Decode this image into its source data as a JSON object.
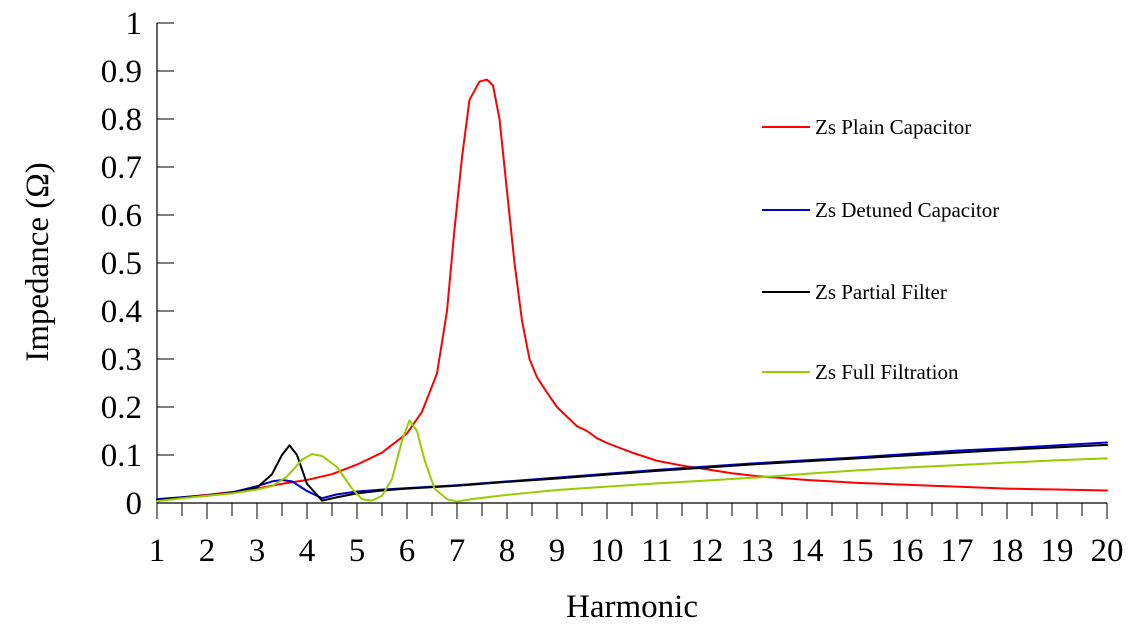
{
  "chart_data": {
    "type": "line",
    "title": "",
    "xlabel": "Harmonic",
    "ylabel": "Impedance (Ω)",
    "xlim": [
      1,
      20
    ],
    "ylim": [
      0,
      1
    ],
    "x_ticks": [
      1,
      2,
      3,
      4,
      5,
      6,
      7,
      8,
      9,
      10,
      11,
      12,
      13,
      14,
      15,
      16,
      17,
      18,
      19,
      20
    ],
    "x_tick_labels": [
      "1",
      "2",
      "3",
      "4",
      "5",
      "6",
      "7",
      "8",
      "9",
      "10",
      "11",
      "12",
      "13",
      "14",
      "15",
      "16",
      "17",
      "18",
      "19",
      "20"
    ],
    "y_ticks": [
      0,
      0.1,
      0.2,
      0.3,
      0.4,
      0.5,
      0.6,
      0.7,
      0.8,
      0.9,
      1
    ],
    "y_tick_labels": [
      "0",
      "0.1",
      "0.2",
      "0.3",
      "0.4",
      "0.5",
      "0.6",
      "0.7",
      "0.8",
      "0.9",
      "1"
    ],
    "grid": false,
    "legend_position": "right",
    "series": [
      {
        "name": "Zs Plain Capacitor",
        "color": "#ff0000",
        "points": [
          [
            1,
            0.005
          ],
          [
            1.5,
            0.012
          ],
          [
            2,
            0.017
          ],
          [
            2.5,
            0.023
          ],
          [
            3,
            0.03
          ],
          [
            3.5,
            0.04
          ],
          [
            4,
            0.048
          ],
          [
            4.5,
            0.06
          ],
          [
            5,
            0.08
          ],
          [
            5.5,
            0.105
          ],
          [
            6,
            0.145
          ],
          [
            6.3,
            0.19
          ],
          [
            6.6,
            0.27
          ],
          [
            6.8,
            0.4
          ],
          [
            6.95,
            0.57
          ],
          [
            7.1,
            0.72
          ],
          [
            7.25,
            0.84
          ],
          [
            7.45,
            0.878
          ],
          [
            7.6,
            0.882
          ],
          [
            7.72,
            0.87
          ],
          [
            7.85,
            0.8
          ],
          [
            8,
            0.65
          ],
          [
            8.15,
            0.5
          ],
          [
            8.3,
            0.38
          ],
          [
            8.45,
            0.3
          ],
          [
            8.6,
            0.262
          ],
          [
            8.8,
            0.23
          ],
          [
            9,
            0.2
          ],
          [
            9.2,
            0.18
          ],
          [
            9.4,
            0.16
          ],
          [
            9.6,
            0.15
          ],
          [
            9.8,
            0.135
          ],
          [
            10,
            0.125
          ],
          [
            10.5,
            0.105
          ],
          [
            11,
            0.088
          ],
          [
            11.5,
            0.078
          ],
          [
            12,
            0.07
          ],
          [
            12.5,
            0.062
          ],
          [
            13,
            0.056
          ],
          [
            13.5,
            0.052
          ],
          [
            14,
            0.048
          ],
          [
            14.5,
            0.045
          ],
          [
            15,
            0.042
          ],
          [
            15.5,
            0.04
          ],
          [
            16,
            0.038
          ],
          [
            16.5,
            0.036
          ],
          [
            17,
            0.034
          ],
          [
            17.5,
            0.032
          ],
          [
            18,
            0.03
          ],
          [
            18.5,
            0.029
          ],
          [
            19,
            0.028
          ],
          [
            19.5,
            0.027
          ],
          [
            20,
            0.026
          ]
        ]
      },
      {
        "name": "Zs Detuned Capacitor",
        "color": "#0000cc",
        "points": [
          [
            1,
            0.008
          ],
          [
            1.5,
            0.012
          ],
          [
            2,
            0.016
          ],
          [
            2.5,
            0.022
          ],
          [
            3,
            0.035
          ],
          [
            3.3,
            0.045
          ],
          [
            3.5,
            0.048
          ],
          [
            3.7,
            0.045
          ],
          [
            4,
            0.025
          ],
          [
            4.3,
            0.01
          ],
          [
            4.6,
            0.018
          ],
          [
            5,
            0.024
          ],
          [
            5.5,
            0.028
          ],
          [
            6,
            0.031
          ],
          [
            7,
            0.037
          ],
          [
            8,
            0.045
          ],
          [
            9,
            0.053
          ],
          [
            10,
            0.061
          ],
          [
            11,
            0.069
          ],
          [
            12,
            0.076
          ],
          [
            13,
            0.083
          ],
          [
            14,
            0.089
          ],
          [
            15,
            0.095
          ],
          [
            16,
            0.102
          ],
          [
            17,
            0.109
          ],
          [
            18,
            0.114
          ],
          [
            19,
            0.12
          ],
          [
            20,
            0.126
          ]
        ]
      },
      {
        "name": "Zs Partial Filter",
        "color": "#000000",
        "points": [
          [
            1,
            0.006
          ],
          [
            1.5,
            0.011
          ],
          [
            2,
            0.015
          ],
          [
            2.5,
            0.021
          ],
          [
            3,
            0.032
          ],
          [
            3.3,
            0.06
          ],
          [
            3.5,
            0.1
          ],
          [
            3.65,
            0.12
          ],
          [
            3.8,
            0.1
          ],
          [
            4,
            0.04
          ],
          [
            4.3,
            0.005
          ],
          [
            4.6,
            0.012
          ],
          [
            5,
            0.02
          ],
          [
            5.5,
            0.026
          ],
          [
            6,
            0.03
          ],
          [
            7,
            0.036
          ],
          [
            8,
            0.044
          ],
          [
            9,
            0.051
          ],
          [
            10,
            0.059
          ],
          [
            11,
            0.067
          ],
          [
            12,
            0.074
          ],
          [
            13,
            0.081
          ],
          [
            14,
            0.087
          ],
          [
            15,
            0.093
          ],
          [
            16,
            0.099
          ],
          [
            17,
            0.105
          ],
          [
            18,
            0.111
          ],
          [
            19,
            0.116
          ],
          [
            20,
            0.121
          ]
        ]
      },
      {
        "name": "Zs Full Filtration",
        "color": "#99cc00",
        "points": [
          [
            1,
            0.004
          ],
          [
            1.5,
            0.01
          ],
          [
            2,
            0.015
          ],
          [
            2.5,
            0.02
          ],
          [
            3,
            0.028
          ],
          [
            3.3,
            0.035
          ],
          [
            3.6,
            0.055
          ],
          [
            3.9,
            0.09
          ],
          [
            4.1,
            0.102
          ],
          [
            4.3,
            0.098
          ],
          [
            4.6,
            0.075
          ],
          [
            4.9,
            0.03
          ],
          [
            5.1,
            0.008
          ],
          [
            5.3,
            0.005
          ],
          [
            5.5,
            0.015
          ],
          [
            5.7,
            0.05
          ],
          [
            5.9,
            0.13
          ],
          [
            6.05,
            0.172
          ],
          [
            6.2,
            0.15
          ],
          [
            6.35,
            0.09
          ],
          [
            6.55,
            0.03
          ],
          [
            6.8,
            0.008
          ],
          [
            7,
            0.003
          ],
          [
            7.3,
            0.008
          ],
          [
            7.6,
            0.012
          ],
          [
            8,
            0.017
          ],
          [
            8.5,
            0.022
          ],
          [
            9,
            0.027
          ],
          [
            10,
            0.034
          ],
          [
            11,
            0.041
          ],
          [
            12,
            0.047
          ],
          [
            13,
            0.053
          ],
          [
            14,
            0.061
          ],
          [
            15,
            0.068
          ],
          [
            16,
            0.074
          ],
          [
            17,
            0.079
          ],
          [
            18,
            0.084
          ],
          [
            19,
            0.089
          ],
          [
            20,
            0.093
          ]
        ]
      }
    ]
  }
}
